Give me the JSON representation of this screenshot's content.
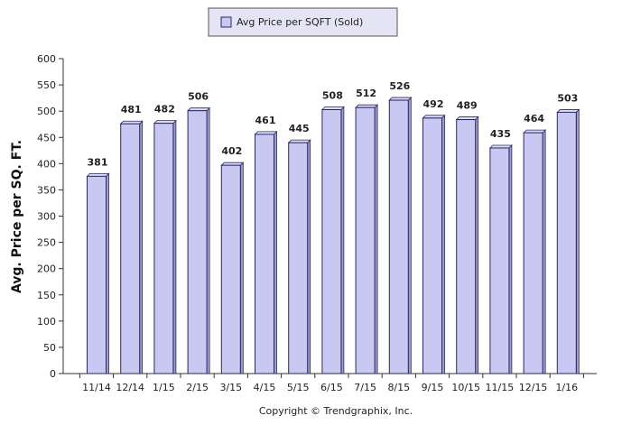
{
  "chart_data": {
    "type": "bar",
    "categories": [
      "11/14",
      "12/14",
      "1/15",
      "2/15",
      "3/15",
      "4/15",
      "5/15",
      "6/15",
      "7/15",
      "8/15",
      "9/15",
      "10/15",
      "11/15",
      "12/15",
      "1/16"
    ],
    "series": [
      {
        "name": "Avg Price per SQFT (Sold)",
        "values": [
          381,
          481,
          482,
          506,
          402,
          461,
          445,
          508,
          512,
          526,
          492,
          489,
          435,
          464,
          503
        ]
      }
    ],
    "ylabel": "Avg. Price per SQ. FT.",
    "xlabel": "",
    "ylim": [
      0,
      600
    ],
    "yticks": [
      0,
      50,
      100,
      150,
      200,
      250,
      300,
      350,
      400,
      450,
      500,
      550,
      600
    ],
    "grid": false,
    "legend": "top-center",
    "data_labels": true,
    "colors": {
      "bar_fill": "#c8c8f2",
      "bar_stroke": "#2a2a5a",
      "legend_fill": "#e4e4f4",
      "axis": "#333333"
    }
  },
  "footer": {
    "copyright": "Copyright © Trendgraphix, Inc."
  }
}
